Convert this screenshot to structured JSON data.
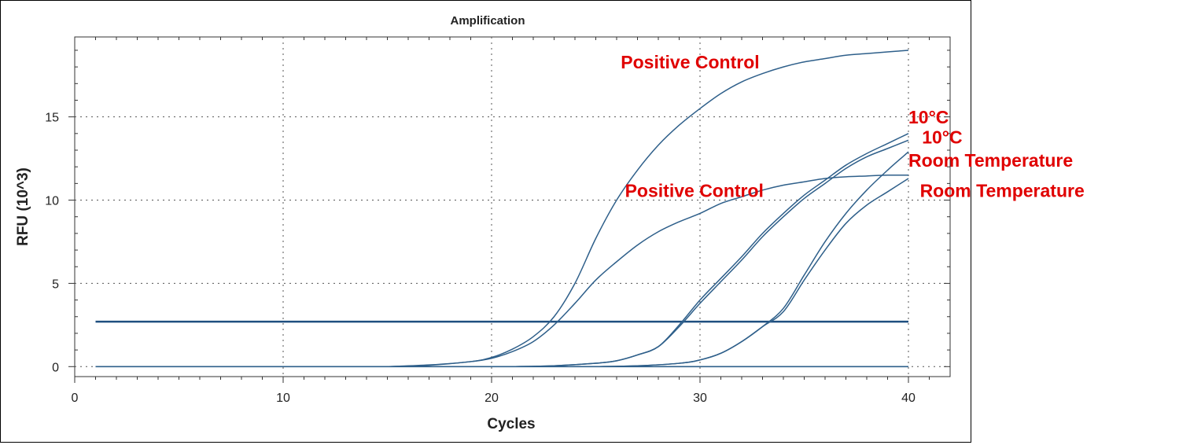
{
  "chart_data": {
    "type": "line",
    "title": "Amplification",
    "xlabel": "Cycles",
    "ylabel": "RFU (10^3)",
    "xlim": [
      0,
      42
    ],
    "ylim": [
      -0.6,
      19.8
    ],
    "xticks": [
      0,
      10,
      20,
      30,
      40
    ],
    "yticks": [
      0,
      5,
      10,
      15
    ],
    "grid": true,
    "colors": {
      "curve": "#2e5f8a",
      "threshold": "#1f4f80",
      "annotation": "#e00000",
      "grid": "#555555"
    },
    "threshold": {
      "y": 2.7,
      "x_range": [
        1,
        40
      ]
    },
    "baseline": {
      "y": 0,
      "x_range": [
        1,
        40
      ]
    },
    "series": [
      {
        "x": [
          15,
          17,
          19,
          20,
          21,
          22,
          23,
          24,
          25,
          26,
          27,
          28,
          29,
          30,
          31,
          32,
          33,
          34,
          35,
          36,
          37,
          38,
          39,
          40
        ],
        "y": [
          0.0,
          0.1,
          0.3,
          0.55,
          1.05,
          1.8,
          3.0,
          5.0,
          7.7,
          10.0,
          11.8,
          13.3,
          14.5,
          15.5,
          16.4,
          17.1,
          17.6,
          18.0,
          18.3,
          18.5,
          18.7,
          18.8,
          18.9,
          19.0
        ]
      },
      {
        "x": [
          15,
          17,
          19,
          20,
          21,
          22,
          23,
          24,
          25,
          26,
          27,
          28,
          29,
          30,
          31,
          32,
          33,
          34,
          35,
          36,
          37,
          38,
          39,
          40
        ],
        "y": [
          0.0,
          0.08,
          0.3,
          0.5,
          0.9,
          1.5,
          2.5,
          3.8,
          5.2,
          6.3,
          7.3,
          8.1,
          8.7,
          9.2,
          9.8,
          10.2,
          10.6,
          10.9,
          11.1,
          11.3,
          11.4,
          11.45,
          11.5,
          11.5
        ]
      },
      {
        "x": [
          21,
          23,
          25,
          26,
          27,
          28,
          29,
          30,
          31,
          32,
          33,
          34,
          35,
          36,
          37,
          38,
          39,
          40
        ],
        "y": [
          0.0,
          0.05,
          0.2,
          0.35,
          0.7,
          1.2,
          2.5,
          4.0,
          5.3,
          6.6,
          8.0,
          9.2,
          10.3,
          11.2,
          12.1,
          12.8,
          13.4,
          14.0
        ]
      },
      {
        "x": [
          21,
          23,
          25,
          26,
          27,
          28,
          29,
          30,
          31,
          32,
          33,
          34,
          35,
          36,
          37,
          38,
          39,
          40
        ],
        "y": [
          0.0,
          0.05,
          0.2,
          0.35,
          0.7,
          1.2,
          2.4,
          3.8,
          5.1,
          6.4,
          7.8,
          9.0,
          10.1,
          11.0,
          11.9,
          12.6,
          13.1,
          13.6
        ]
      },
      {
        "x": [
          25,
          27,
          29,
          30,
          31,
          32,
          33,
          34,
          35,
          36,
          37,
          38,
          39,
          40
        ],
        "y": [
          0.0,
          0.05,
          0.2,
          0.4,
          0.8,
          1.5,
          2.4,
          3.5,
          5.5,
          7.5,
          9.2,
          10.6,
          11.8,
          12.9
        ]
      },
      {
        "x": [
          25,
          27,
          29,
          30,
          31,
          32,
          33,
          34,
          35,
          36,
          37,
          38,
          39,
          40
        ],
        "y": [
          0.0,
          0.05,
          0.2,
          0.4,
          0.8,
          1.5,
          2.4,
          3.3,
          5.2,
          7.0,
          8.6,
          9.7,
          10.5,
          11.3
        ]
      }
    ],
    "annotations": [
      {
        "text": "Positive Control",
        "x": 26.2,
        "y": 17.9
      },
      {
        "text": "Positive Control",
        "x": 26.4,
        "y": 10.2
      },
      {
        "text": "10°C",
        "x": 40.0,
        "y": 14.6
      },
      {
        "text": "10°C",
        "x": 40.65,
        "y": 13.4
      },
      {
        "text": "Room Temperature",
        "x": 40.0,
        "y": 12.0
      },
      {
        "text": "Room Temperature",
        "x": 40.55,
        "y": 10.2
      }
    ]
  }
}
